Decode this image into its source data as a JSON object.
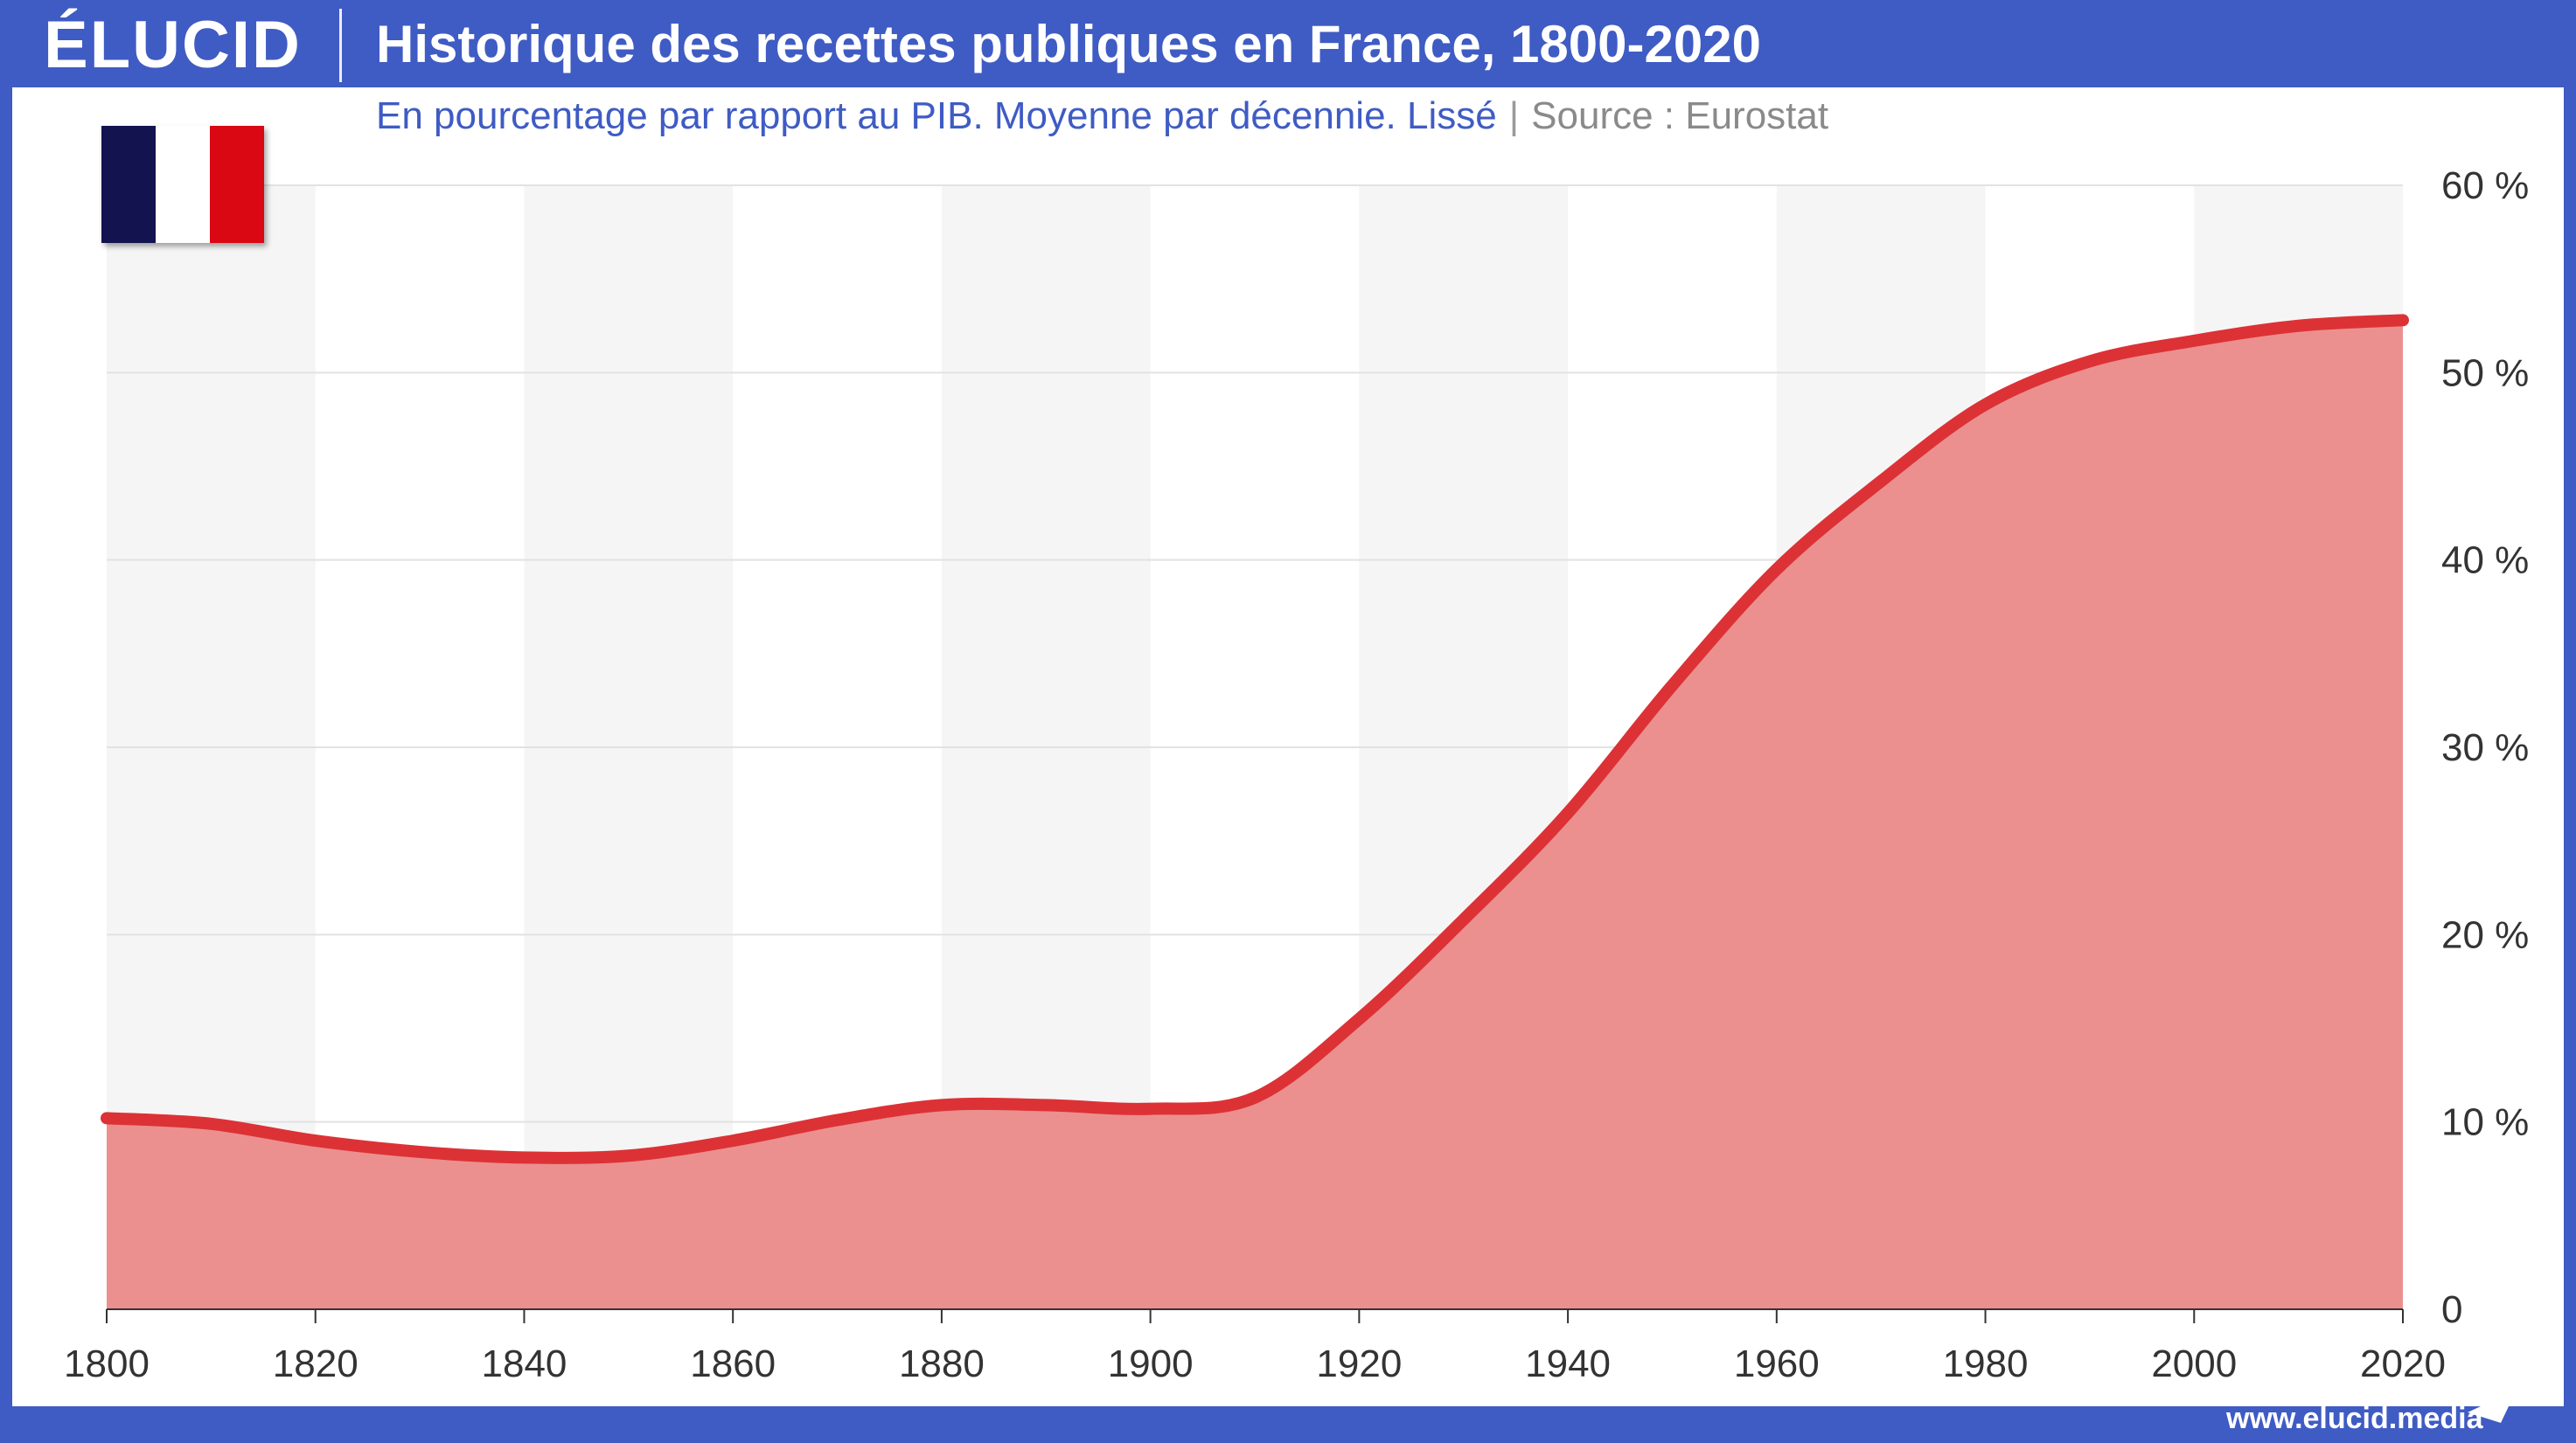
{
  "header": {
    "logo": "ÉLUCID",
    "title": "Historique des recettes publiques en France, 1800-2020"
  },
  "subtitle": {
    "text": "En pourcentage par rapport au PIB. Moyenne par décennie. Lissé",
    "separator": "|",
    "source": "Source : Eurostat"
  },
  "flag": {
    "name": "france-flag",
    "colors": [
      "#12134f",
      "#ffffff",
      "#d90812"
    ]
  },
  "footer": {
    "url": "www.elucid.media"
  },
  "colors": {
    "frame": "#3f5bc4",
    "line": "#dc3236",
    "area": "#eb908f",
    "band": "#f5f5f5",
    "grid": "#e2e2e2",
    "axis": "#333333"
  },
  "chart_data": {
    "type": "area",
    "title": "Historique des recettes publiques en France, 1800-2020",
    "xlabel": "",
    "ylabel": "",
    "xlim": [
      1800,
      2020
    ],
    "ylim": [
      0,
      60
    ],
    "x_ticks": [
      1800,
      1820,
      1840,
      1860,
      1880,
      1900,
      1920,
      1940,
      1960,
      1980,
      2000,
      2020
    ],
    "x_tick_labels": [
      "1800",
      "1820",
      "1840",
      "1860",
      "1880",
      "1900",
      "1920",
      "1940",
      "1960",
      "1980",
      "2000",
      "2020"
    ],
    "y_ticks": [
      0,
      10,
      20,
      30,
      40,
      50,
      60
    ],
    "y_tick_labels": [
      "0",
      "10 %",
      "20 %",
      "30 %",
      "40 %",
      "50 %",
      "60 %"
    ],
    "y_axis_position": "right",
    "grid": true,
    "series": [
      {
        "name": "Recettes publiques (% du PIB)",
        "x": [
          1800,
          1810,
          1820,
          1830,
          1840,
          1850,
          1860,
          1870,
          1880,
          1890,
          1900,
          1910,
          1920,
          1930,
          1940,
          1950,
          1960,
          1970,
          1980,
          1990,
          2000,
          2010,
          2020
        ],
        "values": [
          10.2,
          9.9,
          9.0,
          8.4,
          8.1,
          8.2,
          9.0,
          10.1,
          10.9,
          10.9,
          10.7,
          11.3,
          15.5,
          20.8,
          26.5,
          33.3,
          39.5,
          44.2,
          48.3,
          50.6,
          51.7,
          52.5,
          52.8
        ]
      }
    ]
  }
}
